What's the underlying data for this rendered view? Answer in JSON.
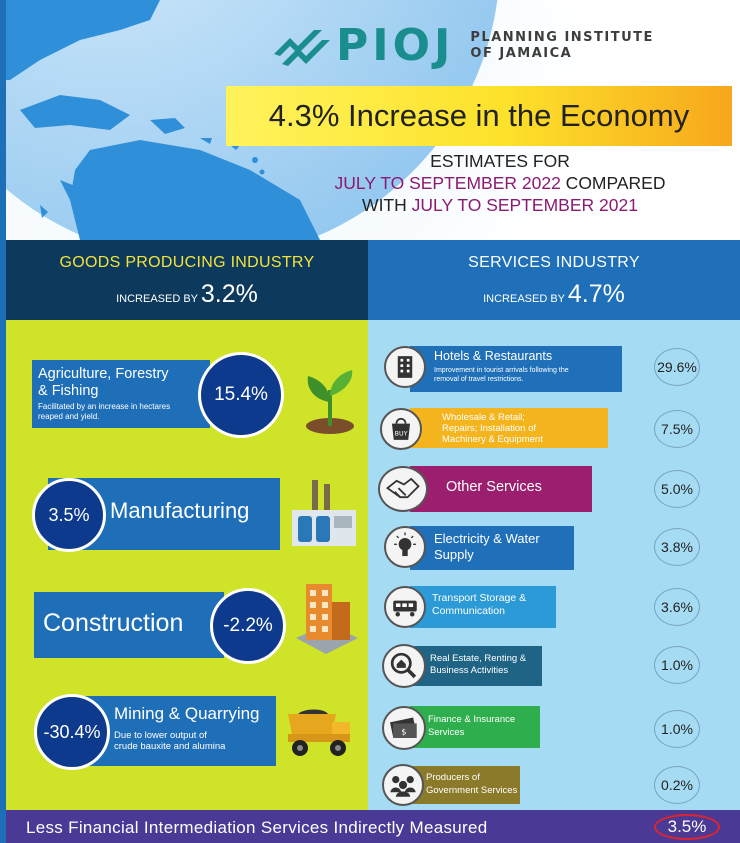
{
  "logo": {
    "name": "PIOJ",
    "subtitle_line1": "PLANNING INSTITUTE",
    "subtitle_line2": "OF JAMAICA"
  },
  "headline": "4.3% Increase in the Economy",
  "estimates": {
    "line1": "ESTIMATES FOR",
    "line2_period": "JULY TO SEPTEMBER 2022",
    "line2_rest": " COMPARED",
    "line3_start": "WITH ",
    "line3_period": "JULY TO SEPTEMBER 2021"
  },
  "goods": {
    "title": "GOODS PRODUCING INDUSTRY",
    "increased_by_label": "INCREASED BY ",
    "value": "3.2%",
    "items": [
      {
        "name_line1": "Agriculture, Forestry",
        "name_line2": "& Fishing",
        "note_line1": "Facilitated by an increase in hectares",
        "note_line2": "reaped and yield.",
        "value": "15.4%",
        "icon": "plant-icon"
      },
      {
        "name": "Manufacturing",
        "value": "3.5%",
        "icon": "factory-icon"
      },
      {
        "name": "Construction",
        "value": "-2.2%",
        "icon": "building-icon"
      },
      {
        "name": "Mining & Quarrying",
        "note_line1": "Due to lower output of",
        "note_line2": "crude bauxite and alumina",
        "value": "-30.4%",
        "icon": "dump-truck-icon"
      }
    ]
  },
  "services": {
    "title": "SERVICES INDUSTRY",
    "increased_by_label": "INCREASED BY ",
    "value": "4.7%",
    "items": [
      {
        "name": "Hotels & Restaurants",
        "note_line1": "Improvement in tourist arrivals following the",
        "note_line2": "removal of travel restrictions.",
        "value": "29.6%",
        "color": "#1f70b8",
        "icon": "hotel-icon"
      },
      {
        "name_line1": "Wholesale & Retail;",
        "name_line2": "Repairs; Installation of",
        "name_line3": "Machinery & Equipment",
        "value": "7.5%",
        "color": "#f4b41e",
        "icon": "buy-bag-icon"
      },
      {
        "name": "Other Services",
        "value": "5.0%",
        "color": "#9c1e6f",
        "icon": "handshake-icon"
      },
      {
        "name_line1": "Electricity & Water",
        "name_line2": "Supply",
        "value": "3.8%",
        "color": "#1f70b8",
        "icon": "lightbulb-icon"
      },
      {
        "name_line1": "Transport Storage &",
        "name_line2": "Communication",
        "value": "3.6%",
        "color": "#2b9ad6",
        "icon": "train-icon"
      },
      {
        "name_line1": "Real Estate, Renting &",
        "name_line2": "Business Activities",
        "value": "1.0%",
        "color": "#1f6485",
        "icon": "house-search-icon"
      },
      {
        "name_line1": "Finance & Insurance",
        "name_line2": "Services",
        "value": "1.0%",
        "color": "#2fae4e",
        "icon": "money-icon"
      },
      {
        "name_line1": "Producers of",
        "name_line2": "Government Services",
        "value": "0.2%",
        "color": "#8a7a2a",
        "icon": "people-icon"
      }
    ]
  },
  "bottom": {
    "label": "Less Financial Intermediation Services Indirectly Measured",
    "value": "3.5%"
  },
  "colors": {
    "goods_bg": "#cfe328",
    "services_bg": "#a6dcf3",
    "navy": "#0d3a5c",
    "blue": "#1f70b8",
    "bottom_bg": "#4a3a96"
  }
}
